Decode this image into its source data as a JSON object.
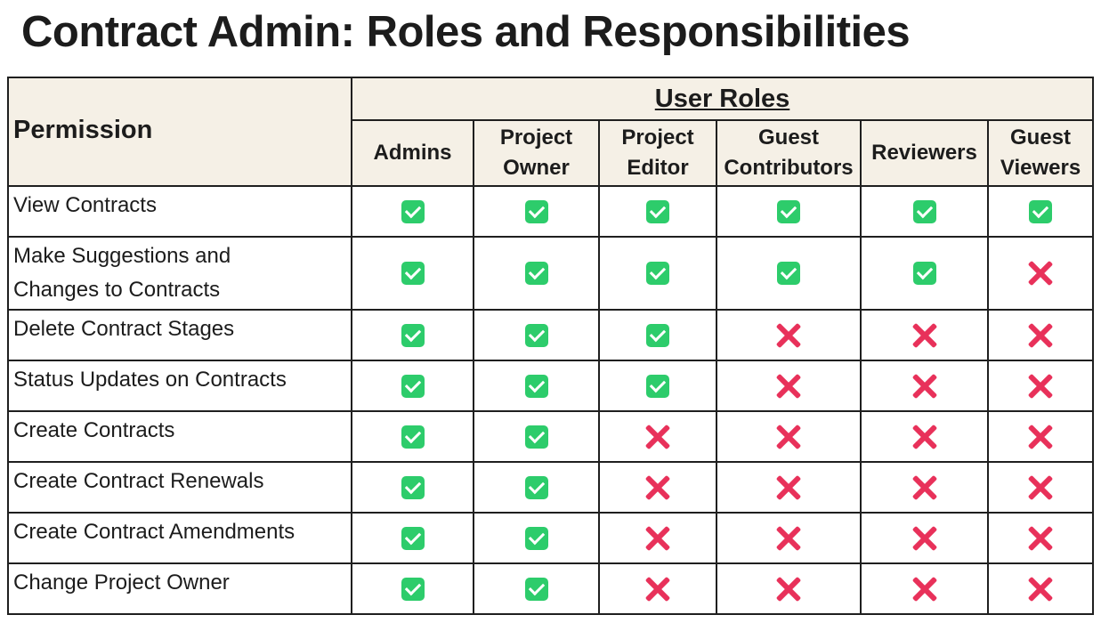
{
  "title": "Contract Admin: Roles and Responsibilities",
  "table": {
    "permission_header": "Permission",
    "roles_header": "User Roles",
    "roles": [
      [
        "Admins"
      ],
      [
        "Project",
        "Owner"
      ],
      [
        "Project",
        "Editor"
      ],
      [
        "Guest",
        "Contributors"
      ],
      [
        "Reviewers"
      ],
      [
        "Guest",
        "Viewers"
      ]
    ],
    "rows": [
      {
        "permission": [
          "View Contracts"
        ],
        "access": [
          "yes",
          "yes",
          "yes",
          "yes",
          "yes",
          "yes"
        ]
      },
      {
        "permission": [
          "Make Suggestions and",
          "Changes to Contracts"
        ],
        "access": [
          "yes",
          "yes",
          "yes",
          "yes",
          "yes",
          "no"
        ]
      },
      {
        "permission": [
          "Delete Contract Stages"
        ],
        "access": [
          "yes",
          "yes",
          "yes",
          "no",
          "no",
          "no"
        ]
      },
      {
        "permission": [
          "Status Updates on Contracts"
        ],
        "access": [
          "yes",
          "yes",
          "yes",
          "no",
          "no",
          "no"
        ]
      },
      {
        "permission": [
          "Create Contracts"
        ],
        "access": [
          "yes",
          "yes",
          "no",
          "no",
          "no",
          "no"
        ]
      },
      {
        "permission": [
          "Create Contract Renewals"
        ],
        "access": [
          "yes",
          "yes",
          "no",
          "no",
          "no",
          "no"
        ]
      },
      {
        "permission": [
          "Create Contract Amendments"
        ],
        "access": [
          "yes",
          "yes",
          "no",
          "no",
          "no",
          "no"
        ]
      },
      {
        "permission": [
          "Change Project Owner"
        ],
        "access": [
          "yes",
          "yes",
          "no",
          "no",
          "no",
          "no"
        ]
      }
    ]
  },
  "icons": {
    "yes": "check-icon",
    "no": "cross-icon"
  },
  "colors": {
    "header_bg": "#f5f0e6",
    "check": "#2dcc6b",
    "cross": "#e8315a"
  }
}
